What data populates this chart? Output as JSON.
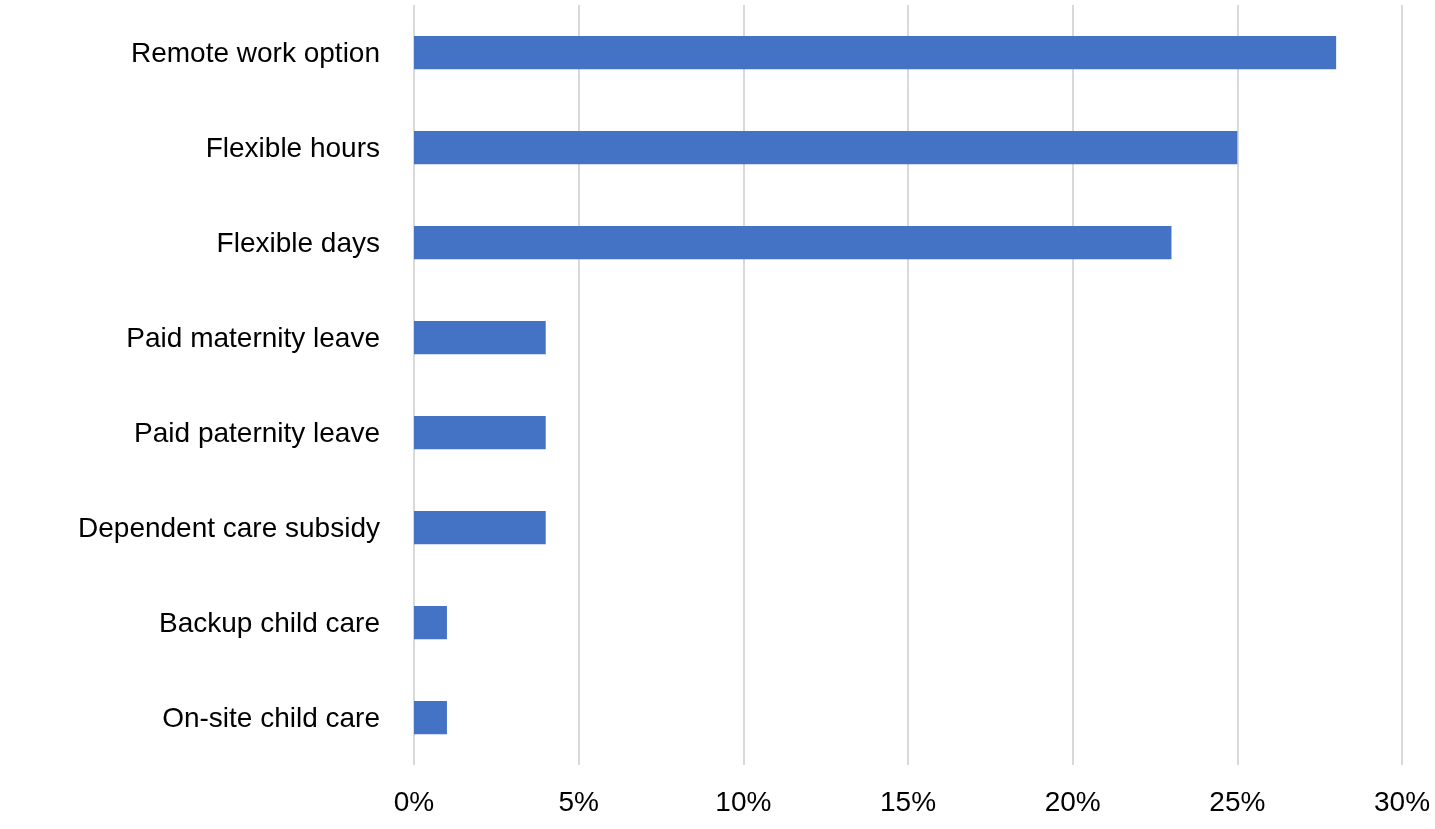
{
  "chart_data": {
    "type": "bar",
    "orientation": "horizontal",
    "categories": [
      "Remote work option",
      "Flexible hours",
      "Flexible days",
      "Paid maternity leave",
      "Paid paternity leave",
      "Dependent care subsidy",
      "Backup child care",
      "On-site child care"
    ],
    "values": [
      28,
      25,
      23,
      4,
      4,
      4,
      1,
      1
    ],
    "color": "#4472c4",
    "xlim": [
      0,
      30
    ],
    "xticks": [
      {
        "value": 0,
        "label": "0%"
      },
      {
        "value": 5,
        "label": "5%"
      },
      {
        "value": 10,
        "label": "10%"
      },
      {
        "value": 15,
        "label": "15%"
      },
      {
        "value": 20,
        "label": "20%"
      },
      {
        "value": 25,
        "label": "25%"
      },
      {
        "value": 30,
        "label": "30%"
      }
    ],
    "grid": "x"
  }
}
